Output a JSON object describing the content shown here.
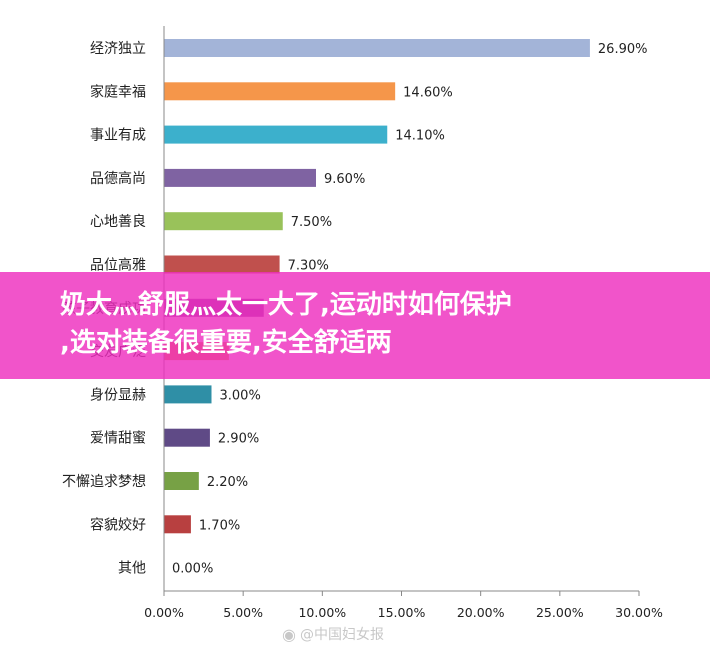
{
  "chart_data": {
    "type": "bar",
    "orientation": "horizontal",
    "categories": [
      "经济独立",
      "家庭幸福",
      "事业有成",
      "品德高尚",
      "心地善良",
      "品位高雅",
      "孩子教育成功",
      "交友广泛",
      "身份显赫",
      "爱情甜蜜",
      "不懈追求梦想",
      "容貌姣好",
      "其他"
    ],
    "values": [
      26.9,
      14.6,
      14.1,
      9.6,
      7.5,
      7.3,
      6.3,
      4.1,
      3.0,
      2.9,
      2.2,
      1.7,
      0.0
    ],
    "value_labels": [
      "26.90%",
      "14.60%",
      "14.10%",
      "9.60%",
      "7.50%",
      "7.30%",
      "",
      "",
      "3.00%",
      "2.90%",
      "2.20%",
      "1.70%",
      "0.00%"
    ],
    "colors": [
      "#a3b4d8",
      "#f5964a",
      "#3cb0cc",
      "#7f63a2",
      "#99c25a",
      "#c0504d",
      "#8e3d9e",
      "#e8883a",
      "#2f8fa6",
      "#5f4a86",
      "#77a145",
      "#b84040",
      "#999999"
    ],
    "xlim": [
      0,
      30
    ],
    "x_ticks": [
      "0.00%",
      "5.00%",
      "10.00%",
      "15.00%",
      "20.00%",
      "25.00%",
      "30.00%"
    ],
    "grid": false,
    "legend": false,
    "title": "",
    "xlabel": "",
    "ylabel": ""
  },
  "overlay": {
    "line1": "奶大灬舒服灬太一大了,运动时如何保护",
    "line2": ",选对装备很重要,安全舒适两"
  },
  "watermark": {
    "icon": "weibo-icon",
    "text": "@中国妇女报"
  }
}
